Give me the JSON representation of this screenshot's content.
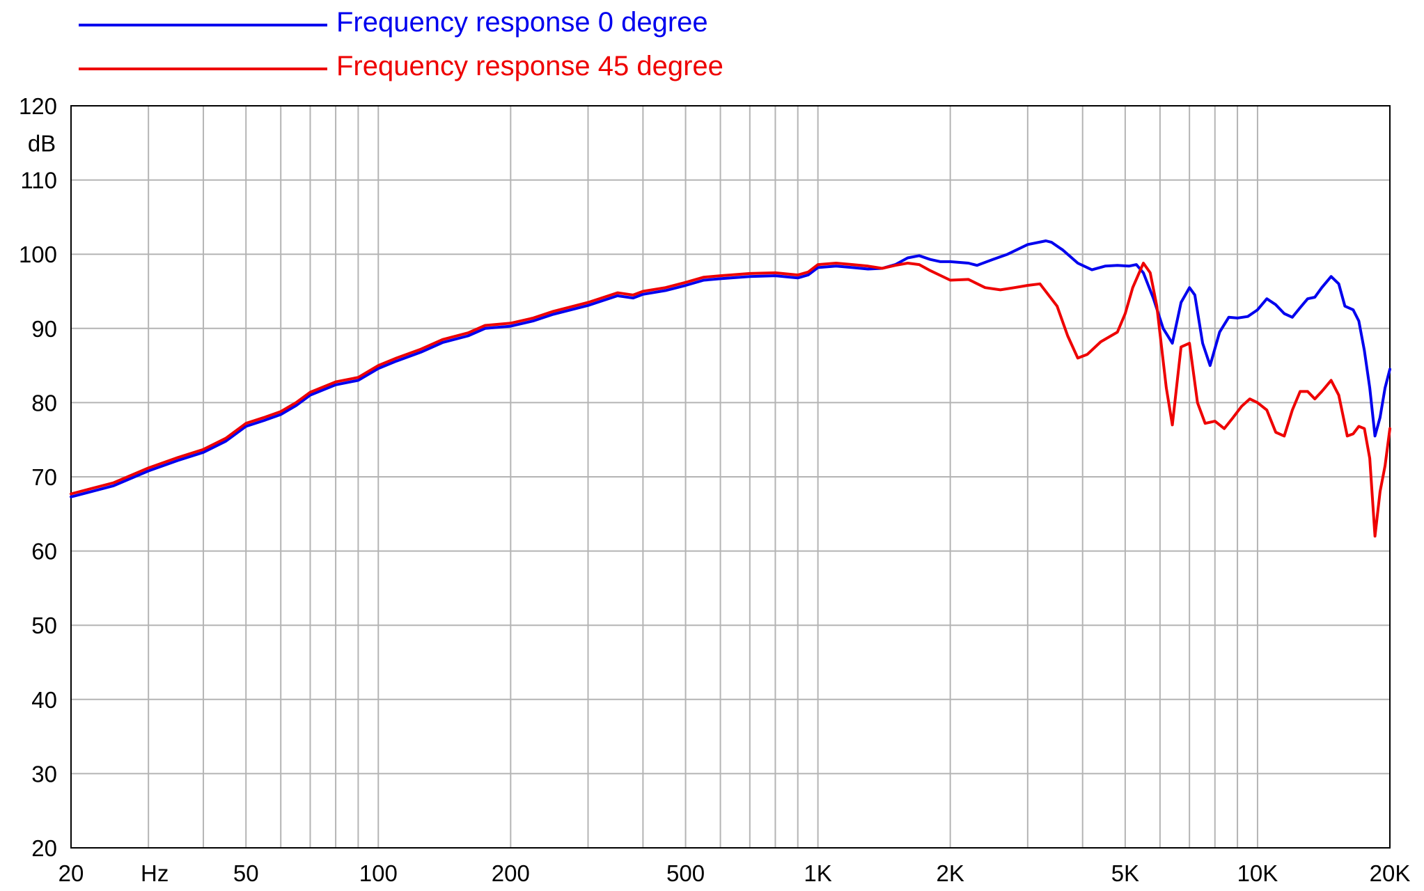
{
  "chart_data": {
    "type": "line",
    "x_scale": "log",
    "xlim": [
      20,
      20000
    ],
    "ylim": [
      20,
      120
    ],
    "grid": true,
    "legend_placement": "top-left, above plot",
    "y_unit_label": "dB",
    "x_unit_label": "Hz",
    "x_ticks": [
      {
        "value": 20,
        "label": "20"
      },
      {
        "value": 50,
        "label": "50"
      },
      {
        "value": 100,
        "label": "100"
      },
      {
        "value": 200,
        "label": "200"
      },
      {
        "value": 500,
        "label": "500"
      },
      {
        "value": 1000,
        "label": "1K"
      },
      {
        "value": 2000,
        "label": "2K"
      },
      {
        "value": 5000,
        "label": "5K"
      },
      {
        "value": 10000,
        "label": "10K"
      },
      {
        "value": 20000,
        "label": "20K"
      }
    ],
    "y_ticks": [
      {
        "value": 120,
        "label": "120"
      },
      {
        "value": 110,
        "label": "110"
      },
      {
        "value": 100,
        "label": "100"
      },
      {
        "value": 90,
        "label": "90"
      },
      {
        "value": 80,
        "label": "80"
      },
      {
        "value": 70,
        "label": "70"
      },
      {
        "value": 60,
        "label": "60"
      },
      {
        "value": 50,
        "label": "50"
      },
      {
        "value": 40,
        "label": "40"
      },
      {
        "value": 30,
        "label": "30"
      },
      {
        "value": 20,
        "label": "20"
      }
    ],
    "series": [
      {
        "name": "Frequency response 0 degree",
        "color": "#0000ee",
        "points": [
          [
            20,
            67.3
          ],
          [
            25,
            68.8
          ],
          [
            30,
            70.8
          ],
          [
            35,
            72.2
          ],
          [
            40,
            73.3
          ],
          [
            45,
            74.8
          ],
          [
            50,
            76.8
          ],
          [
            55,
            77.6
          ],
          [
            60,
            78.4
          ],
          [
            65,
            79.6
          ],
          [
            70,
            81.0
          ],
          [
            80,
            82.4
          ],
          [
            90,
            83.0
          ],
          [
            100,
            84.6
          ],
          [
            110,
            85.6
          ],
          [
            125,
            86.8
          ],
          [
            140,
            88.1
          ],
          [
            160,
            89.0
          ],
          [
            175,
            90.0
          ],
          [
            200,
            90.3
          ],
          [
            225,
            91.0
          ],
          [
            250,
            91.9
          ],
          [
            300,
            93.1
          ],
          [
            350,
            94.4
          ],
          [
            380,
            94.1
          ],
          [
            400,
            94.6
          ],
          [
            450,
            95.1
          ],
          [
            500,
            95.8
          ],
          [
            550,
            96.5
          ],
          [
            600,
            96.7
          ],
          [
            700,
            97.0
          ],
          [
            800,
            97.1
          ],
          [
            900,
            96.8
          ],
          [
            950,
            97.2
          ],
          [
            1000,
            98.2
          ],
          [
            1100,
            98.4
          ],
          [
            1200,
            98.2
          ],
          [
            1300,
            98.0
          ],
          [
            1400,
            98.1
          ],
          [
            1500,
            98.6
          ],
          [
            1600,
            99.5
          ],
          [
            1700,
            99.8
          ],
          [
            1800,
            99.3
          ],
          [
            1900,
            99.0
          ],
          [
            2000,
            99.0
          ],
          [
            2200,
            98.8
          ],
          [
            2300,
            98.5
          ],
          [
            2500,
            99.3
          ],
          [
            2700,
            100.0
          ],
          [
            3000,
            101.3
          ],
          [
            3300,
            101.8
          ],
          [
            3400,
            101.6
          ],
          [
            3600,
            100.6
          ],
          [
            3900,
            98.8
          ],
          [
            4200,
            97.9
          ],
          [
            4500,
            98.4
          ],
          [
            4800,
            98.5
          ],
          [
            5100,
            98.4
          ],
          [
            5300,
            98.6
          ],
          [
            5500,
            97.5
          ],
          [
            5800,
            94.0
          ],
          [
            6100,
            90.0
          ],
          [
            6400,
            88.0
          ],
          [
            6700,
            93.5
          ],
          [
            7000,
            95.5
          ],
          [
            7200,
            94.5
          ],
          [
            7500,
            88.0
          ],
          [
            7800,
            85.0
          ],
          [
            8200,
            89.5
          ],
          [
            8600,
            91.5
          ],
          [
            9000,
            91.4
          ],
          [
            9500,
            91.6
          ],
          [
            10000,
            92.5
          ],
          [
            10500,
            94.0
          ],
          [
            11000,
            93.2
          ],
          [
            11500,
            92.0
          ],
          [
            12000,
            91.5
          ],
          [
            12500,
            92.8
          ],
          [
            13000,
            94.0
          ],
          [
            13500,
            94.2
          ],
          [
            14000,
            95.5
          ],
          [
            14700,
            97.0
          ],
          [
            15300,
            96.0
          ],
          [
            15800,
            93.0
          ],
          [
            16500,
            92.5
          ],
          [
            17000,
            91.0
          ],
          [
            17500,
            87.0
          ],
          [
            18000,
            82.0
          ],
          [
            18500,
            75.5
          ],
          [
            19000,
            78.0
          ],
          [
            19500,
            82.0
          ],
          [
            20000,
            84.5
          ]
        ]
      },
      {
        "name": "Frequency response 45 degree",
        "color": "#ee0000",
        "points": [
          [
            20,
            67.7
          ],
          [
            25,
            69.2
          ],
          [
            30,
            71.2
          ],
          [
            35,
            72.6
          ],
          [
            40,
            73.7
          ],
          [
            45,
            75.2
          ],
          [
            50,
            77.2
          ],
          [
            55,
            78.0
          ],
          [
            60,
            78.8
          ],
          [
            65,
            80.0
          ],
          [
            70,
            81.4
          ],
          [
            80,
            82.8
          ],
          [
            90,
            83.4
          ],
          [
            100,
            85.0
          ],
          [
            110,
            86.0
          ],
          [
            125,
            87.2
          ],
          [
            140,
            88.5
          ],
          [
            160,
            89.4
          ],
          [
            175,
            90.4
          ],
          [
            200,
            90.7
          ],
          [
            225,
            91.4
          ],
          [
            250,
            92.3
          ],
          [
            300,
            93.5
          ],
          [
            350,
            94.8
          ],
          [
            380,
            94.5
          ],
          [
            400,
            95.0
          ],
          [
            450,
            95.5
          ],
          [
            500,
            96.2
          ],
          [
            550,
            96.9
          ],
          [
            600,
            97.1
          ],
          [
            700,
            97.4
          ],
          [
            800,
            97.5
          ],
          [
            900,
            97.2
          ],
          [
            950,
            97.6
          ],
          [
            1000,
            98.6
          ],
          [
            1100,
            98.8
          ],
          [
            1200,
            98.6
          ],
          [
            1300,
            98.4
          ],
          [
            1400,
            98.1
          ],
          [
            1500,
            98.5
          ],
          [
            1600,
            98.8
          ],
          [
            1700,
            98.6
          ],
          [
            1800,
            97.8
          ],
          [
            2000,
            96.5
          ],
          [
            2200,
            96.6
          ],
          [
            2400,
            95.5
          ],
          [
            2600,
            95.2
          ],
          [
            2800,
            95.5
          ],
          [
            3000,
            95.8
          ],
          [
            3200,
            96.0
          ],
          [
            3500,
            93.0
          ],
          [
            3700,
            89.0
          ],
          [
            3900,
            86.0
          ],
          [
            4100,
            86.5
          ],
          [
            4400,
            88.2
          ],
          [
            4800,
            89.5
          ],
          [
            5000,
            92.0
          ],
          [
            5200,
            95.5
          ],
          [
            5500,
            98.8
          ],
          [
            5700,
            97.5
          ],
          [
            5900,
            93.0
          ],
          [
            6200,
            82.0
          ],
          [
            6400,
            77.0
          ],
          [
            6700,
            87.5
          ],
          [
            7000,
            88.0
          ],
          [
            7300,
            80.0
          ],
          [
            7600,
            77.2
          ],
          [
            8000,
            77.5
          ],
          [
            8400,
            76.5
          ],
          [
            8800,
            78.0
          ],
          [
            9200,
            79.5
          ],
          [
            9600,
            80.5
          ],
          [
            10000,
            80.0
          ],
          [
            10500,
            79.0
          ],
          [
            11000,
            76.0
          ],
          [
            11500,
            75.5
          ],
          [
            12000,
            79.0
          ],
          [
            12500,
            81.5
          ],
          [
            13000,
            81.5
          ],
          [
            13500,
            80.5
          ],
          [
            14000,
            81.5
          ],
          [
            14700,
            83.0
          ],
          [
            15300,
            81.0
          ],
          [
            16000,
            75.5
          ],
          [
            16500,
            75.8
          ],
          [
            17000,
            76.8
          ],
          [
            17500,
            76.5
          ],
          [
            18000,
            72.5
          ],
          [
            18500,
            62.0
          ],
          [
            19000,
            68.0
          ],
          [
            19500,
            71.5
          ],
          [
            20000,
            76.5
          ]
        ]
      }
    ]
  }
}
